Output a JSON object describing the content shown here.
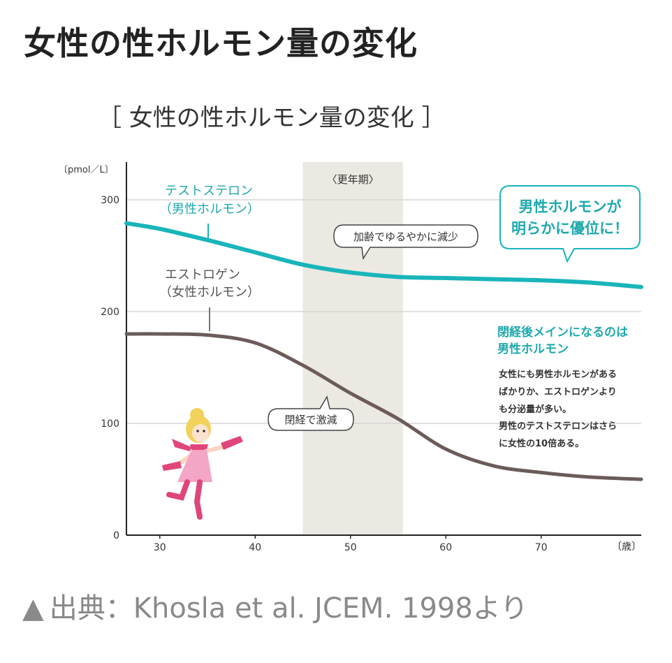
{
  "page": {
    "title": "女性の性ホルモン量の変化",
    "source_prefix": "▲",
    "source_text": "出典：Khosla et al. JCEM. 1998より"
  },
  "colors": {
    "testosterone": "#19b5ba",
    "estrogen": "#6b5c59",
    "menopause_band": "#ece9e3",
    "grid": "#d6d6d6",
    "axis": "#222222",
    "teal_text": "#1fa9ad"
  },
  "chart_data": {
    "type": "line",
    "title": "［ 女性の性ホルモン量の変化 ］",
    "ylabel": "〔pmol／L〕",
    "xlabel": "〔歳〕",
    "xlim": [
      26.5,
      80.5
    ],
    "ylim": [
      0,
      330
    ],
    "xticks": [
      30,
      40,
      50,
      60,
      70
    ],
    "yticks": [
      0,
      100,
      200,
      300
    ],
    "grid": true,
    "menopause_band": {
      "label": "〈更年期〉",
      "from": 45,
      "to": 55.5
    },
    "series": [
      {
        "name": "テストステロン",
        "name_sub": "（男性ホルモン）",
        "color_key": "testosterone",
        "x": [
          26.5,
          30,
          35,
          40,
          45,
          50,
          55,
          60,
          65,
          70,
          75,
          80.5
        ],
        "y": [
          279,
          274,
          264,
          253,
          242,
          235,
          231,
          230,
          229,
          228,
          226,
          222
        ]
      },
      {
        "name": "エストロゲン",
        "name_sub": "（女性ホルモン）",
        "color_key": "estrogen",
        "x": [
          26.5,
          30,
          35,
          40,
          45,
          50,
          55,
          60,
          65,
          70,
          75,
          80.5
        ],
        "y": [
          180,
          180,
          179,
          172,
          152,
          127,
          104,
          77,
          62,
          56,
          52,
          50
        ]
      }
    ],
    "annotations": {
      "testo_decline": "加齢でゆるやかに減少",
      "estro_drop": "閉経で激減",
      "male_advantage": [
        "男性ホルモンが",
        "明らかに優位に！"
      ],
      "note_heading": [
        "閉経後メインになるのは",
        "男性ホルモン"
      ],
      "note_body": [
        "女性にも男性ホルモンがある",
        "ばかりか、エストロゲンより",
        "も分泌量が多い。",
        "男性のテストステロンはさら",
        "に女性の10倍ある。"
      ]
    }
  }
}
